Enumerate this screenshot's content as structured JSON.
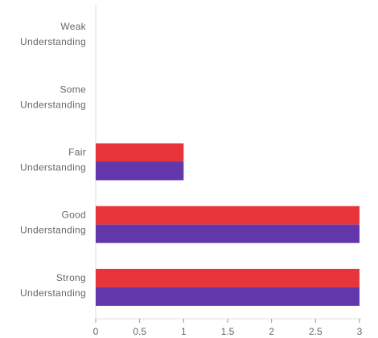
{
  "chart_data": {
    "type": "bar",
    "orientation": "horizontal",
    "categories": [
      [
        "Weak",
        "Understanding"
      ],
      [
        "Some",
        "Understanding"
      ],
      [
        "Fair",
        "Understanding"
      ],
      [
        "Good",
        "Understanding"
      ],
      [
        "Strong",
        "Understanding"
      ]
    ],
    "series": [
      {
        "color": "#e8353c",
        "values": [
          0,
          0,
          1,
          3,
          3
        ]
      },
      {
        "color": "#6137ab",
        "values": [
          0,
          0,
          1,
          3,
          3
        ]
      }
    ],
    "xlim": [
      0,
      3
    ],
    "x_ticks": [
      "0",
      "0.5",
      "1",
      "1.5",
      "2",
      "2.5",
      "3"
    ],
    "x_tick_values": [
      0,
      0.5,
      1,
      1.5,
      2,
      2.5,
      3
    ],
    "grid": false,
    "legend": "none",
    "axis_color": "#dddddd",
    "tick_color": "#999999",
    "label_color": "#666666"
  }
}
